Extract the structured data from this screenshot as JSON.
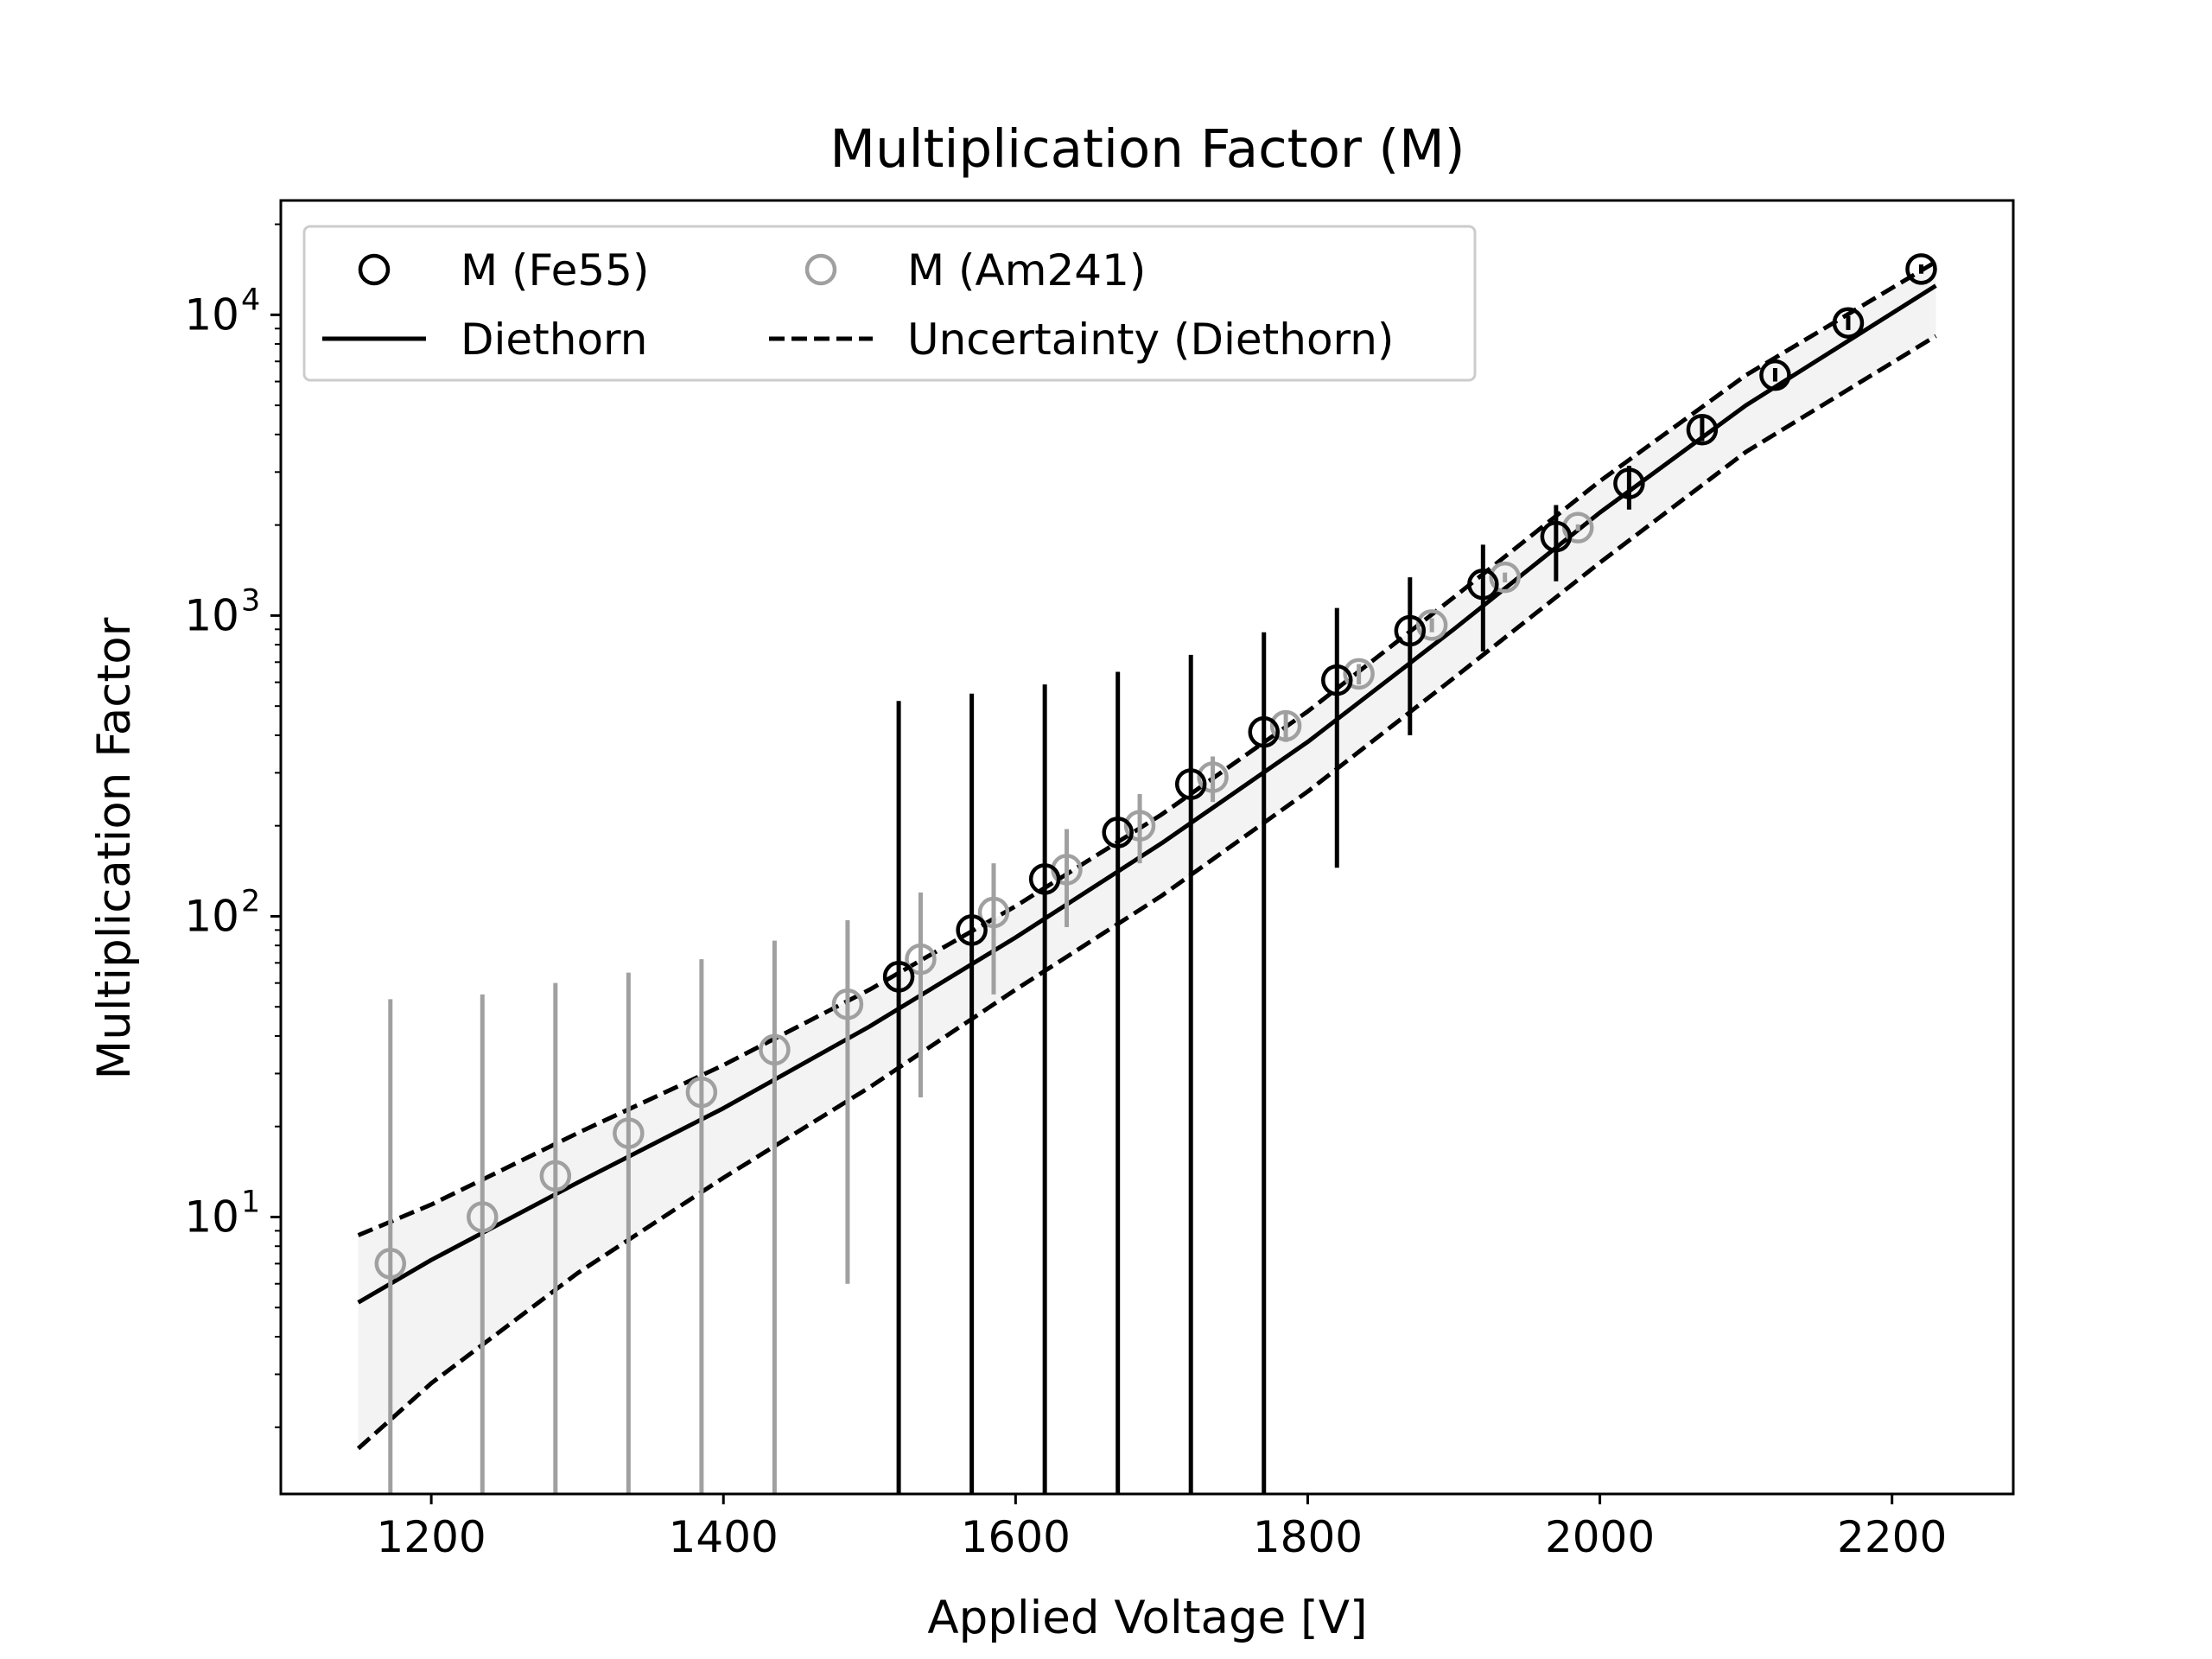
{
  "chart_data": {
    "type": "scatter",
    "title": "Multiplication Factor (M)",
    "xlabel": "Applied Voltage [V]",
    "ylabel": "Multiplication Factor",
    "x_ticks": [
      1200,
      1400,
      1600,
      1800,
      2000,
      2200
    ],
    "x_tick_labels": [
      "1200",
      "1400",
      "1600",
      "1800",
      "2000",
      "2200"
    ],
    "y_scale": "log",
    "y_tick_labels": [
      {
        "base": "10",
        "exp": "1",
        "value": 10
      },
      {
        "base": "10",
        "exp": "2",
        "value": 100
      },
      {
        "base": "10",
        "exp": "3",
        "value": 1000
      },
      {
        "base": "10",
        "exp": "4",
        "value": 10000
      }
    ],
    "xlim": [
      1097,
      2283
    ],
    "ylim": [
      1.2,
      24000
    ],
    "grid": false,
    "legend": {
      "placement": "top-left",
      "entries": [
        {
          "label": "M (Fe55)",
          "marker": "circle",
          "color": "#000000"
        },
        {
          "label": "M (Am241)",
          "marker": "circle",
          "color": "#a0a0a0"
        },
        {
          "label": "Diethorn",
          "style": "solid",
          "color": "#000000"
        },
        {
          "label": "Uncertainty (Diethorn)",
          "style": "dashed",
          "color": "#000000"
        }
      ]
    },
    "series": [
      {
        "name": "M (Fe55)",
        "kind": "scatter",
        "color": "#000000",
        "points": [
          {
            "x": 1520,
            "y": 63,
            "ylo": 0.5,
            "yhi": 520
          },
          {
            "x": 1570,
            "y": 90,
            "ylo": 0.5,
            "yhi": 550
          },
          {
            "x": 1620,
            "y": 133,
            "ylo": 0.5,
            "yhi": 590
          },
          {
            "x": 1670,
            "y": 190,
            "ylo": 0.5,
            "yhi": 650
          },
          {
            "x": 1720,
            "y": 275,
            "ylo": 0.5,
            "yhi": 740
          },
          {
            "x": 1770,
            "y": 410,
            "ylo": 0.5,
            "yhi": 880
          },
          {
            "x": 1820,
            "y": 610,
            "ylo": 145,
            "yhi": 1060
          },
          {
            "x": 1870,
            "y": 890,
            "ylo": 400,
            "yhi": 1340
          },
          {
            "x": 1920,
            "y": 1270,
            "ylo": 760,
            "yhi": 1720
          },
          {
            "x": 1970,
            "y": 1830,
            "ylo": 1300,
            "yhi": 2330
          },
          {
            "x": 2020,
            "y": 2750,
            "ylo": 2250,
            "yhi": 3150
          },
          {
            "x": 2070,
            "y": 4150,
            "ylo": 3800,
            "yhi": 4550
          },
          {
            "x": 2120,
            "y": 6300,
            "ylo": 6000,
            "yhi": 6650
          },
          {
            "x": 2170,
            "y": 9400,
            "ylo": 8900,
            "yhi": 9900
          },
          {
            "x": 2220,
            "y": 14200,
            "ylo": 13700,
            "yhi": 14700
          }
        ]
      },
      {
        "name": "M (Am241)",
        "kind": "scatter",
        "color": "#a0a0a0",
        "points": [
          {
            "x": 1172,
            "y": 7,
            "ylo": 0.5,
            "yhi": 53
          },
          {
            "x": 1235,
            "y": 10,
            "ylo": 0.5,
            "yhi": 55
          },
          {
            "x": 1285,
            "y": 13.7,
            "ylo": 0.5,
            "yhi": 60
          },
          {
            "x": 1335,
            "y": 19,
            "ylo": 0.5,
            "yhi": 65
          },
          {
            "x": 1385,
            "y": 26,
            "ylo": 0.5,
            "yhi": 72
          },
          {
            "x": 1435,
            "y": 36,
            "ylo": 0.5,
            "yhi": 83
          },
          {
            "x": 1485,
            "y": 51,
            "ylo": 6,
            "yhi": 97
          },
          {
            "x": 1535,
            "y": 72,
            "ylo": 25,
            "yhi": 120
          },
          {
            "x": 1585,
            "y": 103,
            "ylo": 55,
            "yhi": 150
          },
          {
            "x": 1635,
            "y": 143,
            "ylo": 92,
            "yhi": 195
          },
          {
            "x": 1685,
            "y": 200,
            "ylo": 150,
            "yhi": 255
          },
          {
            "x": 1735,
            "y": 290,
            "ylo": 240,
            "yhi": 340
          },
          {
            "x": 1785,
            "y": 430,
            "ylo": 380,
            "yhi": 480
          },
          {
            "x": 1835,
            "y": 640,
            "ylo": 590,
            "yhi": 690
          },
          {
            "x": 1885,
            "y": 930,
            "ylo": 880,
            "yhi": 980
          },
          {
            "x": 1935,
            "y": 1340,
            "ylo": 1290,
            "yhi": 1390
          },
          {
            "x": 1985,
            "y": 1960,
            "ylo": 1910,
            "yhi": 2010
          }
        ]
      },
      {
        "name": "Diethorn",
        "kind": "line",
        "style": "solid",
        "color": "#000000",
        "points": [
          {
            "x": 1150,
            "y": 5.2
          },
          {
            "x": 1200,
            "y": 7.2
          },
          {
            "x": 1300,
            "y": 13
          },
          {
            "x": 1400,
            "y": 23
          },
          {
            "x": 1500,
            "y": 43
          },
          {
            "x": 1600,
            "y": 85
          },
          {
            "x": 1700,
            "y": 175
          },
          {
            "x": 1800,
            "y": 380
          },
          {
            "x": 1900,
            "y": 900
          },
          {
            "x": 2000,
            "y": 2200
          },
          {
            "x": 2100,
            "y": 5000
          },
          {
            "x": 2230,
            "y": 12500
          }
        ]
      },
      {
        "name": "Uncertainty (Diethorn)",
        "kind": "line",
        "style": "dashed",
        "color": "#000000",
        "points": [
          {
            "x": 1150,
            "y": 8.7
          },
          {
            "x": 1200,
            "y": 11
          },
          {
            "x": 1300,
            "y": 19
          },
          {
            "x": 1400,
            "y": 32
          },
          {
            "x": 1500,
            "y": 57
          },
          {
            "x": 1600,
            "y": 108
          },
          {
            "x": 1700,
            "y": 218
          },
          {
            "x": 1800,
            "y": 480
          },
          {
            "x": 1900,
            "y": 1150
          },
          {
            "x": 2000,
            "y": 2800
          },
          {
            "x": 2100,
            "y": 6300
          },
          {
            "x": 2230,
            "y": 15000
          }
        ]
      },
      {
        "name": "Uncertainty (Diethorn) lower",
        "kind": "line",
        "style": "dashed",
        "color": "#000000",
        "points": [
          {
            "x": 1150,
            "y": 1.7
          },
          {
            "x": 1200,
            "y": 2.8
          },
          {
            "x": 1300,
            "y": 6.5
          },
          {
            "x": 1400,
            "y": 13.5
          },
          {
            "x": 1500,
            "y": 27
          },
          {
            "x": 1600,
            "y": 57
          },
          {
            "x": 1700,
            "y": 117
          },
          {
            "x": 1800,
            "y": 260
          },
          {
            "x": 1900,
            "y": 620
          },
          {
            "x": 2000,
            "y": 1500
          },
          {
            "x": 2100,
            "y": 3500
          },
          {
            "x": 2230,
            "y": 8500
          }
        ]
      }
    ]
  }
}
